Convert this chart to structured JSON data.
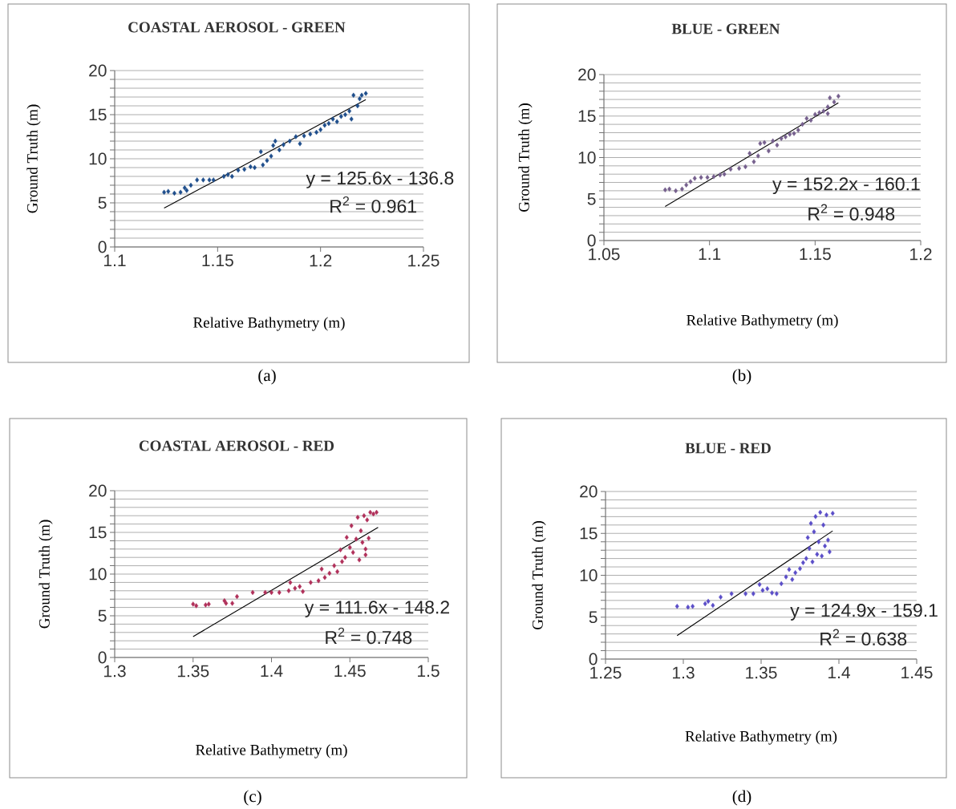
{
  "chart_data": [
    {
      "type": "scatter",
      "title": "COASTAL AEROSOL - GREEN",
      "xlabel": "Relative Bathymetry (m)",
      "ylabel": "Ground Truth (m)",
      "marker": "diamond",
      "grid": "y",
      "annotations": [
        "y = 125.6x - 136.8",
        "R$^{2}$ = 0.961",
        "(a)"
      ],
      "xlim": [
        1.1,
        1.25
      ],
      "xticks": [
        1.1,
        1.15,
        1.2,
        1.25
      ],
      "ylim": [
        0,
        20
      ],
      "yticks": [
        0,
        {
          "value": 1,
          "label": null
        },
        {
          "value": 2,
          "label": null
        },
        {
          "value": 3,
          "label": null
        },
        {
          "value": 4,
          "label": null
        },
        5,
        {
          "value": 6,
          "label": null
        },
        {
          "value": 7,
          "label": null
        },
        {
          "value": 8,
          "label": null
        },
        {
          "value": 9,
          "label": null
        },
        10,
        {
          "value": 11,
          "label": null
        },
        {
          "value": 12,
          "label": null
        },
        {
          "value": 13,
          "label": null
        },
        {
          "value": 14,
          "label": null
        },
        15,
        {
          "value": 16,
          "label": null
        },
        {
          "value": 17,
          "label": null
        },
        {
          "value": 18,
          "label": null
        },
        {
          "value": 19,
          "label": null
        },
        20
      ],
      "series": [
        {
          "type": "scatter",
          "color": "#1f4e8c",
          "x": [
            1.124,
            1.126,
            1.129,
            1.132,
            1.134,
            1.135,
            1.137,
            1.14,
            1.143,
            1.146,
            1.148,
            1.153,
            1.155,
            1.157,
            1.16,
            1.163,
            1.166,
            1.168,
            1.171,
            1.172,
            1.174,
            1.176,
            1.177,
            1.178,
            1.18,
            1.182,
            1.185,
            1.188,
            1.19,
            1.192,
            1.195,
            1.198,
            1.2,
            1.202,
            1.204,
            1.206,
            1.208,
            1.21,
            1.212,
            1.214,
            1.215,
            1.216,
            1.218,
            1.219,
            1.22,
            1.222
          ],
          "values": [
            6.2,
            6.3,
            6.1,
            6.2,
            6.7,
            6.4,
            7.0,
            7.6,
            7.6,
            7.6,
            7.6,
            8.0,
            8.2,
            8.0,
            8.7,
            8.8,
            9.1,
            9.0,
            10.8,
            9.3,
            9.8,
            10.3,
            11.5,
            12.0,
            11.0,
            11.6,
            12.0,
            12.5,
            11.7,
            12.6,
            12.8,
            13.0,
            13.3,
            13.8,
            14.0,
            14.5,
            14.2,
            14.8,
            15.0,
            15.4,
            14.5,
            17.2,
            16.0,
            16.8,
            17.2,
            17.4
          ]
        },
        {
          "type": "line",
          "color": "#000000",
          "marker": "none",
          "x": [
            1.124,
            1.222
          ],
          "values": [
            4.4,
            16.7
          ]
        }
      ]
    },
    {
      "type": "scatter",
      "title": "BLUE - GREEN",
      "xlabel": "Relative Bathymetry (m)",
      "ylabel": "Ground Truth (m)",
      "marker": "diamond",
      "grid": "y",
      "annotations": [
        "y = 152.2x - 160.1",
        "R$^{2}$ = 0.948",
        "(b)"
      ],
      "xlim": [
        1.05,
        1.2
      ],
      "xticks": [
        1.05,
        1.1,
        1.15,
        1.2
      ],
      "ylim": [
        0,
        20
      ],
      "yticks": [
        0,
        {
          "value": 1,
          "label": null
        },
        {
          "value": 2,
          "label": null
        },
        {
          "value": 3,
          "label": null
        },
        {
          "value": 4,
          "label": null
        },
        5,
        {
          "value": 6,
          "label": null
        },
        {
          "value": 7,
          "label": null
        },
        {
          "value": 8,
          "label": null
        },
        {
          "value": 9,
          "label": null
        },
        10,
        {
          "value": 11,
          "label": null
        },
        {
          "value": 12,
          "label": null
        },
        {
          "value": 13,
          "label": null
        },
        {
          "value": 14,
          "label": null
        },
        15,
        {
          "value": 16,
          "label": null
        },
        {
          "value": 17,
          "label": null
        },
        {
          "value": 18,
          "label": null
        },
        {
          "value": 19,
          "label": null
        },
        20
      ],
      "series": [
        {
          "type": "scatter",
          "color": "#76608e",
          "x": [
            1.079,
            1.081,
            1.084,
            1.087,
            1.089,
            1.091,
            1.093,
            1.096,
            1.099,
            1.102,
            1.105,
            1.107,
            1.11,
            1.114,
            1.117,
            1.119,
            1.121,
            1.123,
            1.124,
            1.126,
            1.128,
            1.13,
            1.132,
            1.134,
            1.136,
            1.138,
            1.14,
            1.142,
            1.144,
            1.146,
            1.148,
            1.15,
            1.152,
            1.154,
            1.156,
            1.157,
            1.159,
            1.161,
            1.156
          ],
          "values": [
            6.1,
            6.2,
            6.0,
            6.2,
            6.7,
            7.1,
            7.5,
            7.6,
            7.6,
            7.7,
            7.9,
            8.0,
            8.6,
            8.7,
            8.9,
            10.5,
            9.5,
            10.2,
            11.7,
            11.8,
            10.8,
            12.0,
            11.5,
            12.3,
            12.5,
            12.8,
            12.9,
            13.3,
            14.0,
            14.7,
            14.5,
            15.2,
            15.4,
            15.6,
            16.1,
            17.2,
            16.7,
            17.4,
            15.3
          ]
        },
        {
          "type": "line",
          "color": "#000000",
          "marker": "none",
          "x": [
            1.079,
            1.161
          ],
          "values": [
            4.1,
            16.6
          ]
        }
      ]
    },
    {
      "type": "scatter",
      "title": "COASTAL AEROSOL - RED",
      "xlabel": "Relative Bathymetry (m)",
      "ylabel": "Ground Truth (m)",
      "marker": "diamond",
      "grid": "y",
      "annotations": [
        "y = 111.6x - 148.2",
        "R$^{2}$ = 0.748",
        "(c)"
      ],
      "xlim": [
        1.3,
        1.5
      ],
      "xticks": [
        1.3,
        1.35,
        1.4,
        1.45,
        1.5
      ],
      "ylim": [
        0,
        20
      ],
      "yticks": [
        0,
        {
          "value": 1,
          "label": null
        },
        {
          "value": 2,
          "label": null
        },
        {
          "value": 3,
          "label": null
        },
        {
          "value": 4,
          "label": null
        },
        5,
        {
          "value": 6,
          "label": null
        },
        {
          "value": 7,
          "label": null
        },
        {
          "value": 8,
          "label": null
        },
        {
          "value": 9,
          "label": null
        },
        10,
        {
          "value": 11,
          "label": null
        },
        {
          "value": 12,
          "label": null
        },
        {
          "value": 13,
          "label": null
        },
        {
          "value": 14,
          "label": null
        },
        15,
        {
          "value": 16,
          "label": null
        },
        {
          "value": 17,
          "label": null
        },
        {
          "value": 18,
          "label": null
        },
        {
          "value": 19,
          "label": null
        },
        20
      ],
      "series": [
        {
          "type": "scatter",
          "color": "#b0305a",
          "x": [
            1.35,
            1.352,
            1.358,
            1.36,
            1.37,
            1.371,
            1.375,
            1.378,
            1.388,
            1.396,
            1.4,
            1.405,
            1.411,
            1.412,
            1.415,
            1.418,
            1.42,
            1.425,
            1.43,
            1.432,
            1.434,
            1.437,
            1.44,
            1.442,
            1.444,
            1.445,
            1.447,
            1.448,
            1.45,
            1.451,
            1.452,
            1.454,
            1.455,
            1.456,
            1.457,
            1.458,
            1.459,
            1.46,
            1.461,
            1.462,
            1.463,
            1.465,
            1.467,
            1.46
          ],
          "values": [
            6.4,
            6.2,
            6.3,
            6.4,
            6.8,
            6.5,
            6.5,
            7.3,
            7.8,
            7.8,
            7.8,
            7.8,
            8.0,
            9.0,
            8.3,
            8.5,
            7.9,
            9.0,
            9.2,
            10.6,
            9.6,
            10.1,
            11.0,
            10.3,
            12.9,
            11.5,
            12.0,
            14.4,
            13.2,
            15.8,
            12.6,
            14.2,
            16.8,
            11.7,
            15.2,
            13.8,
            17.0,
            12.3,
            16.5,
            14.3,
            17.4,
            17.2,
            17.4,
            13.0
          ]
        },
        {
          "type": "line",
          "color": "#000000",
          "marker": "none",
          "x": [
            1.35,
            1.468
          ],
          "values": [
            2.5,
            15.6
          ]
        }
      ]
    },
    {
      "type": "scatter",
      "title": "BLUE - RED",
      "xlabel": "Relative Bathymetry (m)",
      "ylabel": "Ground Truth (m)",
      "marker": "diamond",
      "grid": "y",
      "annotations": [
        "y = 124.9x - 159.1",
        "R$^{2}$ = 0.638",
        "(d)"
      ],
      "xlim": [
        1.25,
        1.45
      ],
      "xticks": [
        1.25,
        1.3,
        1.35,
        1.4,
        1.45
      ],
      "ylim": [
        0,
        20
      ],
      "yticks": [
        0,
        {
          "value": 1,
          "label": null
        },
        {
          "value": 2,
          "label": null
        },
        {
          "value": 3,
          "label": null
        },
        {
          "value": 4,
          "label": null
        },
        5,
        {
          "value": 6,
          "label": null
        },
        {
          "value": 7,
          "label": null
        },
        {
          "value": 8,
          "label": null
        },
        {
          "value": 9,
          "label": null
        },
        10,
        {
          "value": 11,
          "label": null
        },
        {
          "value": 12,
          "label": null
        },
        {
          "value": 13,
          "label": null
        },
        {
          "value": 14,
          "label": null
        },
        15,
        {
          "value": 16,
          "label": null
        },
        {
          "value": 17,
          "label": null
        },
        {
          "value": 18,
          "label": null
        },
        {
          "value": 19,
          "label": null
        },
        20
      ],
      "series": [
        {
          "type": "scatter",
          "color": "#5b4ec8",
          "x": [
            1.296,
            1.303,
            1.306,
            1.314,
            1.316,
            1.319,
            1.324,
            1.331,
            1.34,
            1.345,
            1.349,
            1.351,
            1.354,
            1.357,
            1.36,
            1.363,
            1.366,
            1.368,
            1.37,
            1.372,
            1.375,
            1.377,
            1.379,
            1.38,
            1.381,
            1.382,
            1.383,
            1.384,
            1.385,
            1.386,
            1.387,
            1.388,
            1.389,
            1.39,
            1.391,
            1.392,
            1.393,
            1.394,
            1.396
          ],
          "values": [
            6.3,
            6.2,
            6.3,
            6.6,
            6.9,
            6.4,
            7.4,
            7.8,
            7.8,
            7.8,
            8.9,
            8.2,
            8.4,
            7.9,
            7.8,
            9.0,
            9.8,
            10.7,
            9.5,
            10.3,
            10.8,
            11.5,
            12.0,
            14.5,
            13.2,
            16.2,
            11.6,
            15.2,
            17.0,
            12.5,
            14.0,
            17.5,
            12.3,
            16.0,
            13.5,
            17.2,
            14.2,
            12.8,
            17.4
          ]
        },
        {
          "type": "line",
          "color": "#000000",
          "marker": "none",
          "x": [
            1.296,
            1.396
          ],
          "values": [
            2.8,
            15.3
          ]
        }
      ]
    }
  ]
}
